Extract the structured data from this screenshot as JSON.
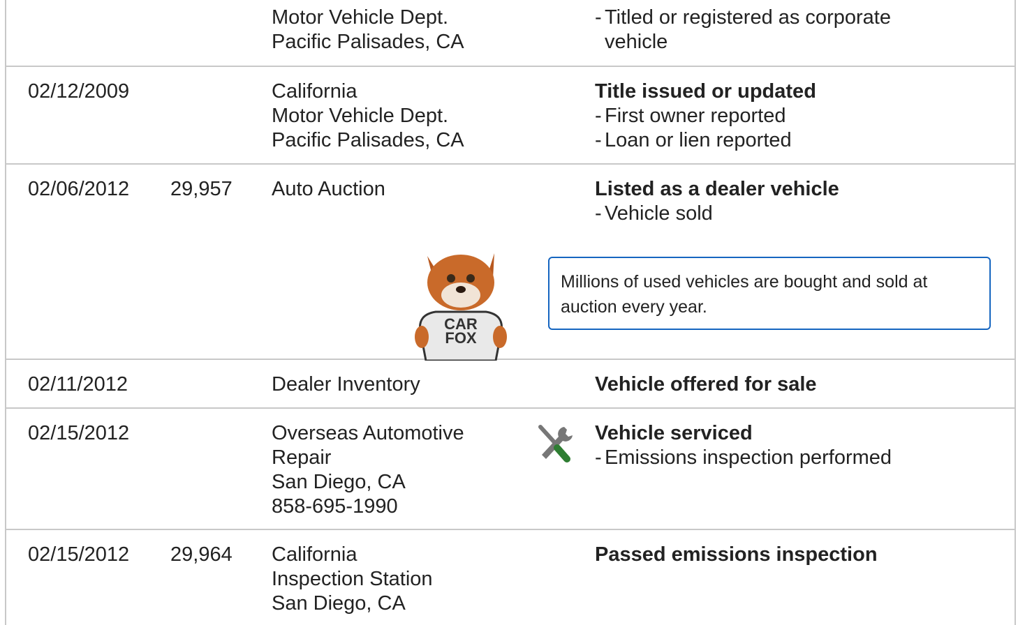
{
  "rows": [
    {
      "source": [
        "Motor Vehicle Dept.",
        "Pacific Palisades, CA"
      ],
      "details": [
        "Titled or registered as corporate vehicle"
      ]
    },
    {
      "date": "02/12/2009",
      "source": [
        "California",
        "Motor Vehicle Dept.",
        "Pacific Palisades, CA"
      ],
      "title": "Title issued or updated",
      "details": [
        "First owner reported",
        "Loan or lien reported"
      ]
    },
    {
      "date": "02/06/2012",
      "odometer": "29,957",
      "source": [
        "Auto Auction"
      ],
      "title": "Listed as a dealer vehicle",
      "details": [
        "Vehicle sold"
      ]
    },
    {
      "date": "02/11/2012",
      "source": [
        "Dealer Inventory"
      ],
      "title": "Vehicle offered for sale"
    },
    {
      "date": "02/15/2012",
      "source": [
        "Overseas Automotive Repair",
        "San Diego, CA",
        "858-695-1990"
      ],
      "title": "Vehicle serviced",
      "details": [
        "Emissions inspection performed"
      ]
    },
    {
      "date": "02/15/2012",
      "odometer": "29,964",
      "source": [
        "California",
        "Inspection Station",
        "San Diego, CA"
      ],
      "title": "Passed emissions inspection"
    }
  ],
  "callout": {
    "text": "Millions of used vehicles are bought and sold at auction every year.",
    "mascot": [
      "CAR",
      "FOX"
    ]
  }
}
